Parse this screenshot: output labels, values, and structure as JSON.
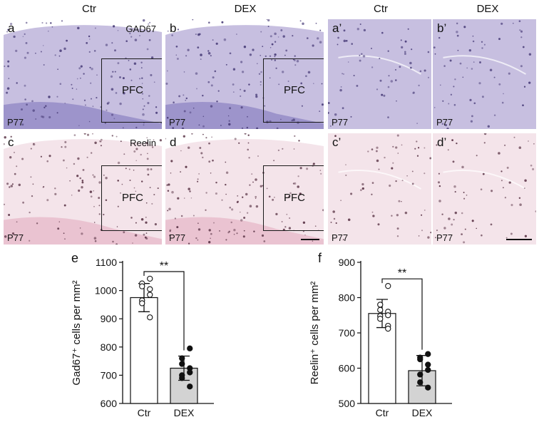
{
  "column_headers": [
    "Ctr",
    "DEX",
    "Ctr",
    "DEX"
  ],
  "panels": [
    {
      "label": "a",
      "age": "P77",
      "stain": "GAD67",
      "roi": "PFC"
    },
    {
      "label": "b",
      "age": "P77",
      "roi": "PFC"
    },
    {
      "label": "a’",
      "age": "P77"
    },
    {
      "label": "b’",
      "age": "P77"
    },
    {
      "label": "c",
      "age": "P77",
      "stain": "Reelin",
      "roi": "PFC"
    },
    {
      "label": "d",
      "age": "P77",
      "roi": "PFC"
    },
    {
      "label": "c’",
      "age": "P77"
    },
    {
      "label": "d’",
      "age": "P77"
    }
  ],
  "colors": {
    "gad67_bg": "#c7bfe0",
    "gad67_dark": "#8f86c4",
    "gad67_cell": "#4b3f7a",
    "reelin_bg": "#f4e4ea",
    "reelin_dark": "#e7b8c8",
    "reelin_cell": "#5a3446",
    "ctr_bar": "#ffffff",
    "dex_bar": "#d3d3d3"
  },
  "chart_data": [
    {
      "panel_label": "e",
      "type": "bar",
      "categories": [
        "Ctr",
        "DEX"
      ],
      "values": [
        975,
        725
      ],
      "error_sd": [
        50,
        43
      ],
      "points": {
        "Ctr": [
          1042,
          1025,
          1015,
          1005,
          985,
          965,
          955,
          905
        ],
        "DEX": [
          795,
          760,
          740,
          725,
          710,
          700,
          690,
          660
        ]
      },
      "ylabel": "Gad67⁺ cells per mm²",
      "ylim": [
        600,
        1100
      ],
      "yticks": [
        600,
        700,
        800,
        900,
        1000,
        1100
      ],
      "significance": "**"
    },
    {
      "panel_label": "f",
      "type": "bar",
      "categories": [
        "Ctr",
        "DEX"
      ],
      "values": [
        755,
        593
      ],
      "error_sd": [
        40,
        43
      ],
      "points": {
        "Ctr": [
          833,
          780,
          765,
          760,
          750,
          748,
          740,
          720,
          712
        ],
        "DEX": [
          640,
          630,
          625,
          610,
          595,
          582,
          560,
          545
        ]
      },
      "ylabel": "Reelin⁺ cells per mm²",
      "ylim": [
        500,
        900
      ],
      "yticks": [
        500,
        600,
        700,
        800,
        900
      ],
      "significance": "**"
    }
  ]
}
